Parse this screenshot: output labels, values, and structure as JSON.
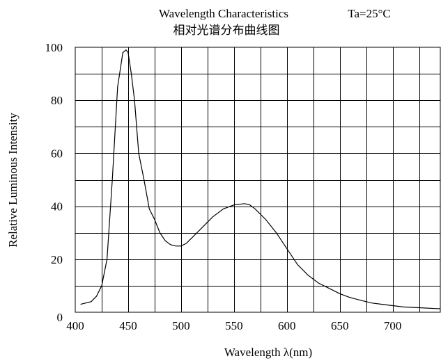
{
  "chart_data": {
    "type": "line",
    "title": "Wavelength Characteristics",
    "condition": "Ta=25°C",
    "subtitle": "相对光谱分布曲线图",
    "xlabel": "Wavelength λ(nm)",
    "ylabel": "Relative Luminous Intensity",
    "xlim": [
      400,
      745
    ],
    "ylim": [
      0,
      100
    ],
    "x_ticks": [
      400,
      450,
      500,
      550,
      600,
      650,
      700
    ],
    "y_ticks": [
      0,
      20,
      40,
      60,
      80,
      100
    ],
    "grid": true,
    "line_color": "#000000",
    "series": [
      {
        "x": [
          405,
          415,
          420,
          425,
          430,
          435,
          440,
          445,
          448,
          450,
          453,
          456,
          460,
          465,
          470,
          475,
          480,
          485,
          490,
          495,
          500,
          505,
          510,
          520,
          530,
          540,
          550,
          560,
          565,
          570,
          580,
          590,
          600,
          610,
          620,
          630,
          640,
          650,
          660,
          670,
          680,
          690,
          700,
          710,
          720,
          730,
          740,
          745
        ],
        "y": [
          3,
          4,
          6,
          10,
          20,
          50,
          85,
          98,
          99,
          98,
          90,
          80,
          60,
          50,
          39,
          35,
          30,
          27,
          25.5,
          25,
          25,
          26,
          28,
          32,
          36,
          39,
          40.5,
          41,
          40.5,
          39,
          35,
          30,
          24,
          18,
          14,
          11,
          9,
          7,
          5.5,
          4.5,
          3.5,
          3,
          2.5,
          2,
          1.8,
          1.6,
          1.4,
          1.3
        ]
      }
    ]
  }
}
